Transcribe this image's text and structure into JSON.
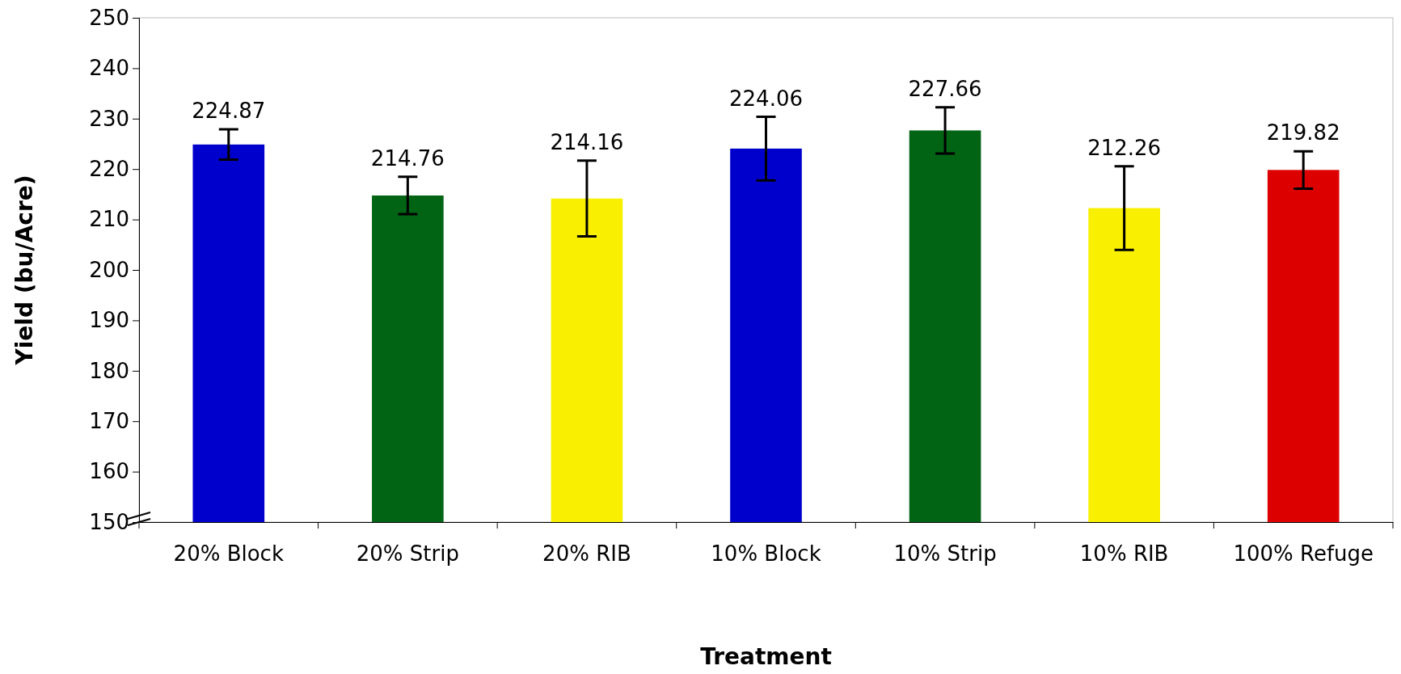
{
  "chart_data": {
    "type": "bar",
    "xlabel": "Treatment",
    "ylabel": "Yield (bu/Acre)",
    "categories": [
      "20% Block",
      "20% Strip",
      "20% RIB",
      "10% Block",
      "10% Strip",
      "10% RIB",
      "100% Refuge"
    ],
    "values": [
      224.87,
      214.76,
      214.16,
      224.06,
      227.66,
      212.26,
      219.82
    ],
    "colors": [
      "#0000cc",
      "#006414",
      "#f8f000",
      "#0000cc",
      "#006414",
      "#f8f000",
      "#dd0000"
    ],
    "errors": [
      3,
      3.7,
      7.5,
      6.3,
      4.6,
      8.3,
      3.7
    ],
    "data_labels": true,
    "ylim": [
      150,
      250
    ],
    "yticks": [
      150,
      160,
      170,
      180,
      190,
      200,
      210,
      220,
      230,
      240,
      250
    ],
    "grid": false
  }
}
